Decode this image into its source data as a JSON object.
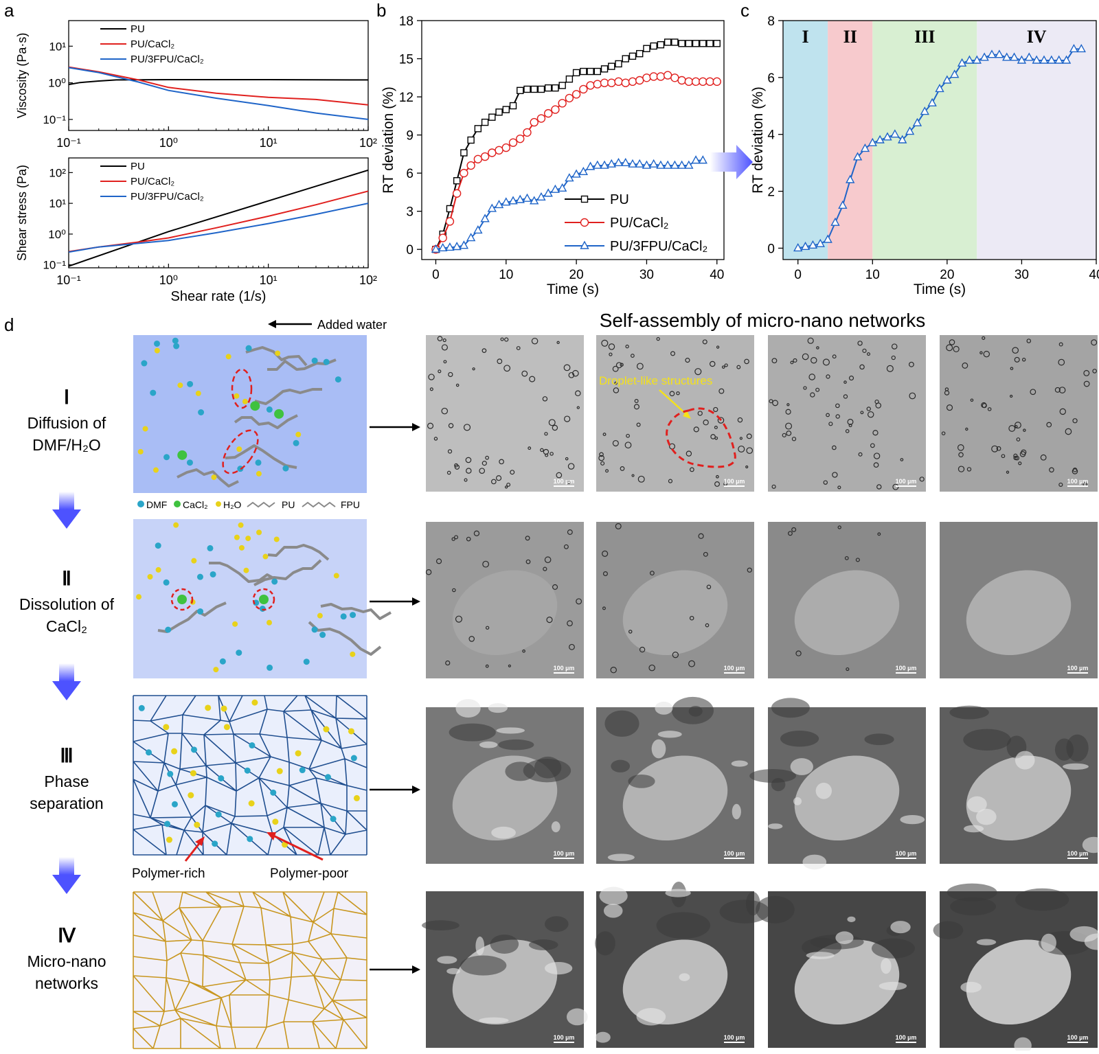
{
  "panel_letters": {
    "a": "a",
    "b": "b",
    "c": "c",
    "d": "d"
  },
  "colors": {
    "pu": "#000000",
    "pu_cacl2": "#e0201e",
    "pu_3fpu": "#1e64c8",
    "stage1_bg": "#bfe3ee",
    "stage2_bg": "#f7cacd",
    "stage3_bg": "#d8efd2",
    "stage4_bg": "#eceaf5",
    "dmf": "#2aa5c8",
    "cacl2": "#3fc23f",
    "water": "#e8d21a",
    "network_blue": "#1f4e8f",
    "network_gold": "#c8961e"
  },
  "chart_data": [
    {
      "type": "line",
      "id": "a-top",
      "ylabel": "Viscosity (Pa·s)",
      "xlabel": "",
      "xscale": "log",
      "yscale": "log",
      "xlim": [
        0.1,
        100
      ],
      "ylim": [
        0.05,
        50
      ],
      "xticks": [
        "10⁻¹",
        "10⁰",
        "10¹",
        "10²"
      ],
      "yticks": [
        "10⁻¹",
        "10⁰",
        "10¹"
      ],
      "legend": [
        "PU",
        "PU/CaCl₂",
        "PU/3FPU/CaCl₂"
      ],
      "series": [
        {
          "name": "PU",
          "x": [
            0.1,
            0.13,
            0.2,
            0.3,
            1,
            10,
            100
          ],
          "y": [
            0.9,
            1.02,
            1.12,
            1.2,
            1.22,
            1.22,
            1.2
          ]
        },
        {
          "name": "PU/CaCl₂",
          "x": [
            0.1,
            0.2,
            0.5,
            1,
            3,
            10,
            30,
            100
          ],
          "y": [
            2.7,
            2.0,
            1.2,
            0.75,
            0.52,
            0.4,
            0.35,
            0.25
          ]
        },
        {
          "name": "PU/3FPU/CaCl₂",
          "x": [
            0.1,
            0.2,
            0.5,
            1,
            3,
            10,
            30,
            100
          ],
          "y": [
            2.6,
            1.9,
            1.05,
            0.62,
            0.38,
            0.24,
            0.15,
            0.1
          ]
        }
      ]
    },
    {
      "type": "line",
      "id": "a-bottom",
      "ylabel": "Shear stress (Pa)",
      "xlabel": "Shear rate (1/s)",
      "xscale": "log",
      "yscale": "log",
      "xlim": [
        0.1,
        100
      ],
      "ylim": [
        0.08,
        300
      ],
      "xticks": [
        "10⁻¹",
        "10⁰",
        "10¹",
        "10²"
      ],
      "yticks": [
        "10⁻¹",
        "10⁰",
        "10¹",
        "10²"
      ],
      "legend": [
        "PU",
        "PU/CaCl₂",
        "PU/3FPU/CaCl₂"
      ],
      "series": [
        {
          "name": "PU",
          "x": [
            0.1,
            1,
            10,
            100
          ],
          "y": [
            0.09,
            1.2,
            12,
            120
          ]
        },
        {
          "name": "PU/CaCl₂",
          "x": [
            0.1,
            0.2,
            0.5,
            1,
            3,
            10,
            30,
            100
          ],
          "y": [
            0.27,
            0.38,
            0.55,
            0.75,
            1.6,
            3.8,
            9,
            25
          ]
        },
        {
          "name": "PU/3FPU/CaCl₂",
          "x": [
            0.1,
            0.2,
            0.5,
            1,
            3,
            10,
            30,
            100
          ],
          "y": [
            0.26,
            0.38,
            0.5,
            0.62,
            1.1,
            2.2,
            4.4,
            10
          ]
        }
      ]
    },
    {
      "type": "line",
      "id": "b",
      "ylabel": "RT deviation (%)",
      "xlabel": "Time (s)",
      "xlim": [
        -2,
        41
      ],
      "ylim": [
        -0.8,
        18
      ],
      "xticks": [
        0,
        10,
        20,
        30,
        40
      ],
      "yticks": [
        0,
        3,
        6,
        9,
        12,
        15,
        18
      ],
      "legend": [
        "PU",
        "PU/CaCl₂",
        "PU/3FPU/CaCl₂"
      ],
      "series": [
        {
          "name": "PU",
          "x": [
            0,
            1,
            2,
            3,
            4,
            5,
            6,
            7,
            8,
            9,
            10,
            11,
            12,
            13,
            14,
            15,
            16,
            17,
            18,
            19,
            20,
            21,
            22,
            23,
            24,
            25,
            26,
            27,
            28,
            29,
            30,
            31,
            32,
            33,
            34,
            35,
            36,
            37,
            38,
            39,
            40
          ],
          "y": [
            0,
            1.2,
            3.2,
            5.4,
            7.6,
            8.6,
            9.5,
            10.0,
            10.4,
            10.8,
            11.0,
            11.3,
            12.5,
            12.6,
            12.6,
            12.6,
            12.7,
            12.7,
            12.9,
            13.4,
            13.9,
            14.0,
            14.0,
            14.0,
            14.2,
            14.4,
            14.6,
            15.0,
            15.2,
            15.4,
            15.8,
            16.0,
            16.1,
            16.3,
            16.3,
            16.2,
            16.2,
            16.2,
            16.2,
            16.2,
            16.2
          ]
        },
        {
          "name": "PU/CaCl₂",
          "x": [
            0,
            1,
            2,
            3,
            4,
            5,
            6,
            7,
            8,
            9,
            10,
            11,
            12,
            13,
            14,
            15,
            16,
            17,
            18,
            19,
            20,
            21,
            22,
            23,
            24,
            25,
            26,
            27,
            28,
            29,
            30,
            31,
            32,
            33,
            34,
            35,
            36,
            37,
            38,
            39,
            40
          ],
          "y": [
            0,
            0.9,
            2.2,
            4.4,
            6.0,
            6.6,
            7.1,
            7.3,
            7.6,
            7.8,
            8.0,
            8.4,
            8.7,
            9.2,
            10.0,
            10.3,
            10.7,
            11.0,
            11.5,
            11.9,
            12.2,
            12.6,
            12.9,
            13.0,
            13.1,
            13.1,
            13.2,
            13.1,
            13.2,
            13.3,
            13.5,
            13.6,
            13.6,
            13.7,
            13.5,
            13.3,
            13.2,
            13.2,
            13.2,
            13.2,
            13.2
          ]
        },
        {
          "name": "PU/3FPU/CaCl₂",
          "x": [
            0,
            1,
            2,
            3,
            4,
            5,
            6,
            7,
            8,
            9,
            10,
            11,
            12,
            13,
            14,
            15,
            16,
            17,
            18,
            19,
            20,
            21,
            22,
            23,
            24,
            25,
            26,
            27,
            28,
            29,
            30,
            31,
            32,
            33,
            34,
            35,
            36,
            37,
            38
          ],
          "y": [
            0,
            0.1,
            0.15,
            0.2,
            0.3,
            0.9,
            1.5,
            2.4,
            3.2,
            3.5,
            3.7,
            3.8,
            3.9,
            4.0,
            3.8,
            4.1,
            4.4,
            4.7,
            4.8,
            5.6,
            5.9,
            6.1,
            6.5,
            6.6,
            6.6,
            6.7,
            6.8,
            6.8,
            6.7,
            6.7,
            6.6,
            6.7,
            6.6,
            6.6,
            6.6,
            6.6,
            6.6,
            7.0,
            7.0
          ]
        }
      ]
    },
    {
      "type": "line",
      "id": "c",
      "ylabel": "RT deviation (%)",
      "xlabel": "Time (s)",
      "xlim": [
        -2,
        40
      ],
      "ylim": [
        -0.4,
        8
      ],
      "xticks": [
        0,
        10,
        20,
        30,
        40
      ],
      "yticks": [
        0,
        2,
        4,
        6,
        8
      ],
      "stages": [
        {
          "label": "I",
          "from": -2,
          "to": 4
        },
        {
          "label": "II",
          "from": 4,
          "to": 10
        },
        {
          "label": "III",
          "from": 10,
          "to": 24
        },
        {
          "label": "IV",
          "from": 24,
          "to": 40
        }
      ],
      "series": [
        {
          "name": "PU/3FPU/CaCl₂",
          "x": [
            0,
            1,
            2,
            3,
            4,
            5,
            6,
            7,
            8,
            9,
            10,
            11,
            12,
            13,
            14,
            15,
            16,
            17,
            18,
            19,
            20,
            21,
            22,
            23,
            24,
            25,
            26,
            27,
            28,
            29,
            30,
            31,
            32,
            33,
            34,
            35,
            36,
            37,
            38
          ],
          "y": [
            0,
            0.05,
            0.1,
            0.15,
            0.3,
            0.9,
            1.5,
            2.4,
            3.2,
            3.5,
            3.7,
            3.8,
            3.9,
            4.0,
            3.8,
            4.1,
            4.4,
            4.8,
            5.1,
            5.6,
            5.9,
            6.1,
            6.5,
            6.6,
            6.6,
            6.7,
            6.8,
            6.8,
            6.7,
            6.7,
            6.6,
            6.7,
            6.6,
            6.6,
            6.6,
            6.6,
            6.6,
            7.0,
            7.0
          ]
        }
      ]
    }
  ],
  "panel_d": {
    "added_water": "Added water",
    "title": "Self-assembly of micro-nano networks",
    "droplet_label": "Droplet-like structures",
    "scale_bar": "100 µm",
    "stages": [
      {
        "numeral": "Ⅰ",
        "line1": "Diffusion of",
        "line2": "DMF/H₂O"
      },
      {
        "numeral": "Ⅱ",
        "line1": "Dissolution of",
        "line2": "CaCl₂"
      },
      {
        "numeral": "Ⅲ",
        "line1": "Phase",
        "line2": "separation"
      },
      {
        "numeral": "Ⅳ",
        "line1": "Micro-nano",
        "line2": "networks"
      }
    ],
    "legend": {
      "dmf": "DMF",
      "cacl2": "CaCl₂",
      "water": "H₂O",
      "pu": "PU",
      "fpu": "FPU"
    },
    "polymer_rich": "Polymer-rich",
    "polymer_poor": "Polymer-poor"
  }
}
